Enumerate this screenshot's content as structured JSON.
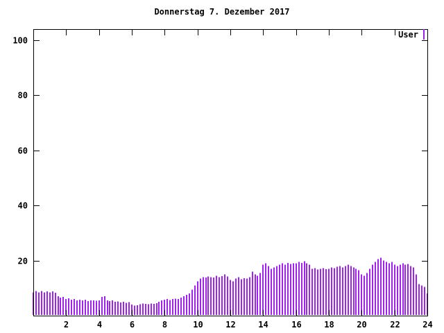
{
  "title": "Donnerstag 7. Dezember 2017",
  "legend": {
    "label": "User"
  },
  "chart_data": {
    "type": "bar",
    "title": "Donnerstag 7. Dezember 2017",
    "xlabel": "",
    "ylabel": "",
    "xlim": [
      0,
      24
    ],
    "ylim": [
      0,
      104
    ],
    "xticks": [
      2,
      4,
      6,
      8,
      10,
      12,
      14,
      16,
      18,
      20,
      22,
      24
    ],
    "yticks": [
      20,
      40,
      60,
      80,
      100
    ],
    "grid": false,
    "legend_position": "top-right",
    "series": [
      {
        "name": "User",
        "color": "#a020f0",
        "x_start": 0,
        "x_step": 0.1666667,
        "values": [
          8.5,
          9.0,
          8.5,
          9.0,
          8.5,
          8.8,
          8.5,
          8.8,
          8.3,
          7.0,
          6.5,
          6.8,
          6.0,
          6.3,
          5.8,
          6.0,
          5.5,
          5.8,
          5.5,
          5.8,
          5.3,
          5.5,
          5.6,
          5.4,
          5.5,
          6.8,
          7.0,
          5.5,
          5.3,
          5.5,
          5.0,
          5.2,
          4.8,
          5.0,
          4.7,
          4.9,
          4.0,
          3.6,
          3.8,
          4.2,
          4.4,
          4.3,
          4.2,
          4.4,
          4.3,
          4.5,
          5.0,
          5.5,
          5.8,
          6.0,
          5.7,
          6.0,
          6.2,
          6.1,
          6.5,
          7.0,
          7.5,
          8.0,
          9.5,
          11.0,
          12.5,
          13.5,
          14.0,
          13.8,
          14.2,
          14.0,
          13.8,
          14.5,
          14.0,
          14.3,
          15.0,
          14.2,
          13.0,
          12.5,
          13.5,
          14.0,
          13.2,
          13.6,
          13.5,
          14.0,
          16.0,
          15.0,
          14.5,
          15.5,
          18.5,
          19.0,
          18.0,
          17.0,
          17.5,
          18.0,
          18.5,
          19.0,
          18.5,
          19.2,
          18.8,
          19.0,
          19.0,
          19.5,
          19.2,
          19.8,
          19.0,
          18.5,
          17.0,
          17.3,
          16.8,
          17.0,
          17.2,
          16.9,
          17.0,
          17.5,
          17.2,
          17.8,
          18.0,
          17.5,
          18.0,
          18.5,
          18.0,
          17.5,
          17.0,
          16.5,
          15.0,
          14.5,
          15.5,
          17.0,
          18.5,
          19.5,
          20.5,
          21.0,
          20.0,
          19.5,
          19.0,
          19.5,
          18.5,
          18.0,
          18.5,
          19.0,
          18.5,
          18.8,
          18.0,
          17.5,
          15.0,
          11.5,
          11.0,
          10.5,
          8.0
        ]
      }
    ]
  }
}
